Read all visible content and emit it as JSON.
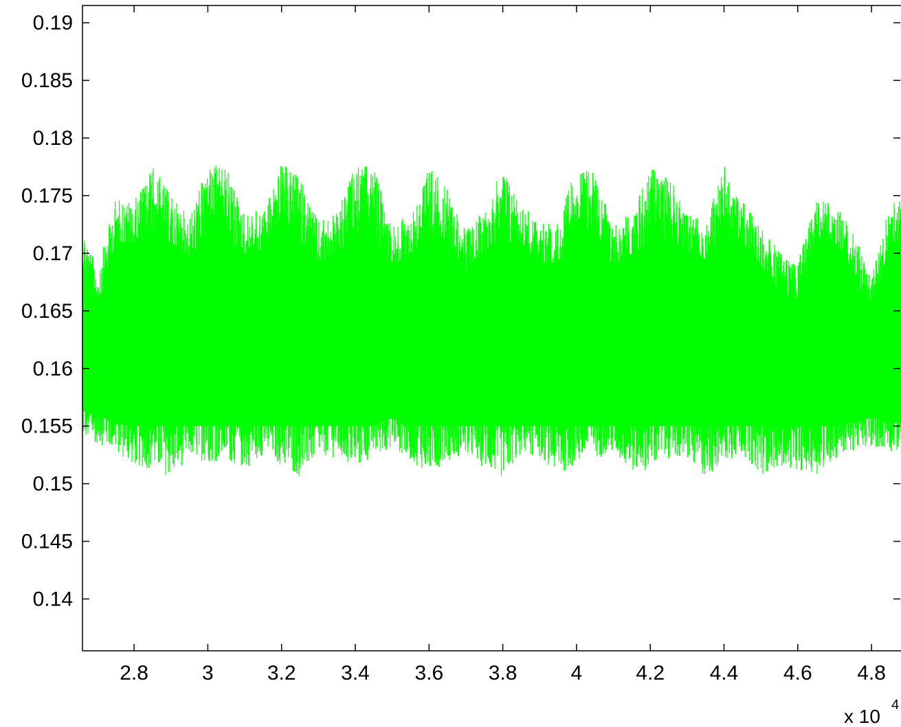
{
  "chart_data": {
    "type": "line",
    "title": "",
    "xlabel": "",
    "ylabel": "",
    "x_exponent_label": "x 10",
    "x_exponent_power": "4",
    "xlim": [
      2.66,
      4.88
    ],
    "ylim": [
      0.1355,
      0.1915
    ],
    "x_ticks": [
      2.8,
      3.0,
      3.2,
      3.4,
      3.6,
      3.8,
      4.0,
      4.2,
      4.4,
      4.6,
      4.8
    ],
    "x_tick_labels": [
      "2.8",
      "3",
      "3.2",
      "3.4",
      "3.6",
      "3.8",
      "4",
      "4.2",
      "4.4",
      "4.6",
      "4.8"
    ],
    "y_ticks": [
      0.14,
      0.145,
      0.15,
      0.155,
      0.16,
      0.165,
      0.17,
      0.175,
      0.18,
      0.185,
      0.19
    ],
    "y_tick_labels": [
      "0.14",
      "0.145",
      "0.15",
      "0.155",
      "0.16",
      "0.165",
      "0.17",
      "0.175",
      "0.18",
      "0.185",
      "0.19"
    ],
    "grid": false,
    "series": [
      {
        "color": "#00ff00",
        "mean": 0.1635,
        "envelope_x": [
          2.66,
          2.7,
          2.75,
          2.8,
          2.85,
          2.9,
          2.95,
          3.0,
          3.05,
          3.1,
          3.15,
          3.2,
          3.25,
          3.3,
          3.35,
          3.4,
          3.45,
          3.5,
          3.55,
          3.6,
          3.65,
          3.7,
          3.75,
          3.8,
          3.85,
          3.9,
          3.95,
          4.0,
          4.05,
          4.1,
          4.15,
          4.2,
          4.25,
          4.3,
          4.35,
          4.4,
          4.45,
          4.5,
          4.55,
          4.6,
          4.65,
          4.7,
          4.75,
          4.8,
          4.85,
          4.88
        ],
        "envelope_upper": [
          0.1725,
          0.1685,
          0.1748,
          0.1745,
          0.1777,
          0.175,
          0.1732,
          0.1777,
          0.1775,
          0.1735,
          0.1738,
          0.1778,
          0.1766,
          0.1728,
          0.1735,
          0.1776,
          0.1775,
          0.1725,
          0.1735,
          0.1776,
          0.1755,
          0.172,
          0.1738,
          0.1775,
          0.1745,
          0.1725,
          0.1728,
          0.1775,
          0.177,
          0.1725,
          0.1735,
          0.1776,
          0.1768,
          0.1735,
          0.173,
          0.1776,
          0.1745,
          0.1725,
          0.1702,
          0.1695,
          0.1745,
          0.1745,
          0.172,
          0.1678,
          0.1745,
          0.1745
        ],
        "envelope_lower": [
          0.1538,
          0.1535,
          0.1527,
          0.1515,
          0.1512,
          0.1505,
          0.1523,
          0.1518,
          0.152,
          0.1512,
          0.1525,
          0.1515,
          0.1505,
          0.1525,
          0.1522,
          0.1512,
          0.1522,
          0.1532,
          0.152,
          0.1508,
          0.152,
          0.1525,
          0.1513,
          0.1505,
          0.1525,
          0.1523,
          0.1508,
          0.1515,
          0.1522,
          0.1525,
          0.151,
          0.1512,
          0.1522,
          0.152,
          0.1505,
          0.1518,
          0.1525,
          0.1508,
          0.1515,
          0.1512,
          0.1508,
          0.152,
          0.1528,
          0.1532,
          0.1528,
          0.1528
        ]
      }
    ]
  }
}
